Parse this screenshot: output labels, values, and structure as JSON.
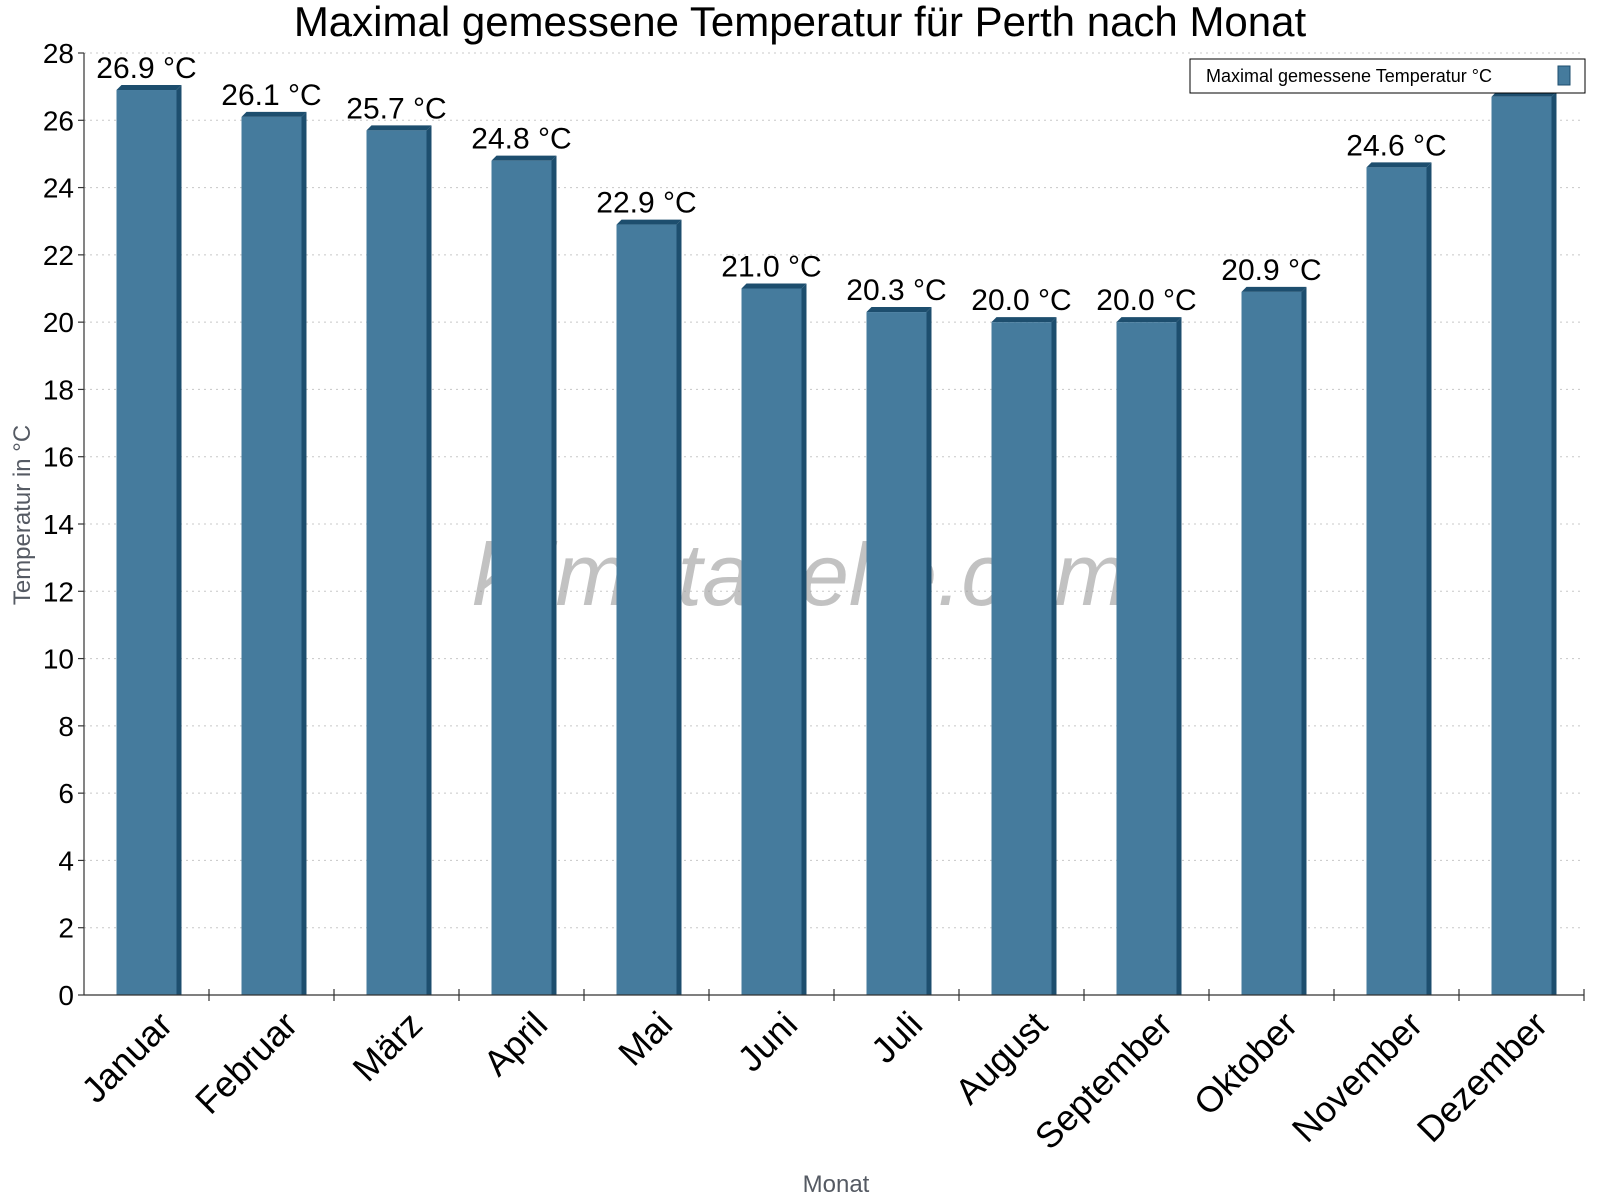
{
  "chart_data": {
    "type": "bar",
    "title": "Maximal gemessene Temperatur für Perth nach Monat",
    "xlabel": "Monat",
    "ylabel": "Temperatur in °C",
    "ylim": [
      0,
      28
    ],
    "yticks": [
      0,
      2,
      4,
      6,
      8,
      10,
      12,
      14,
      16,
      18,
      20,
      22,
      24,
      26,
      28
    ],
    "grid": true,
    "legend_position": "top-right",
    "categories": [
      "Januar",
      "Februar",
      "März",
      "April",
      "Mai",
      "Juni",
      "Juli",
      "August",
      "September",
      "Oktober",
      "November",
      "Dezember"
    ],
    "series": [
      {
        "name": "Maximal gemessene Temperatur °C",
        "values": [
          26.9,
          26.1,
          25.7,
          24.8,
          22.9,
          21.0,
          20.3,
          20.0,
          20.0,
          20.9,
          24.6,
          26.7
        ],
        "labels": [
          "26.9 °C",
          "26.1 °C",
          "25.7 °C",
          "24.8 °C",
          "22.9 °C",
          "21.0 °C",
          "20.3 °C",
          "20.0 °C",
          "20.0 °C",
          "20.9 °C",
          "24.6 °C",
          ""
        ],
        "color": "#457b9d",
        "shade_color": "#1d4e6e"
      }
    ],
    "watermark": "klimatabelle.com"
  }
}
